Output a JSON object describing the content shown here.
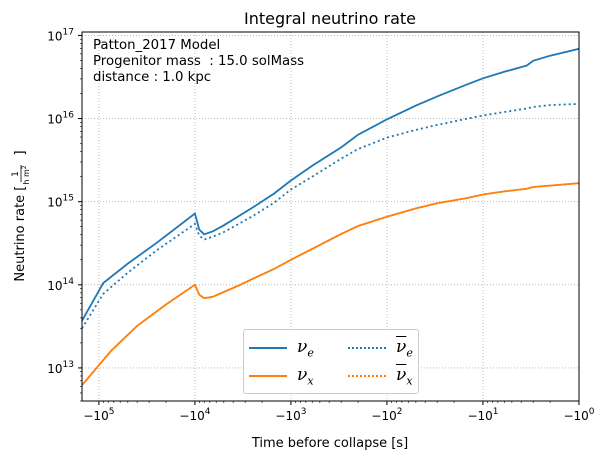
{
  "chart_data": {
    "type": "line",
    "title": "Integral neutrino rate",
    "xlabel": "Time before collapse [s]",
    "ylabel": "Neutrino rate [1/(h m²)]",
    "x_scale": "symlog-negative",
    "xlim": [
      -150000,
      -1
    ],
    "y_scale": "log",
    "ylim": [
      4000000000000.0,
      1.1e+17
    ],
    "x_ticks": [
      {
        "value": -100000,
        "base": "−10",
        "exp": "5"
      },
      {
        "value": -10000,
        "base": "−10",
        "exp": "4"
      },
      {
        "value": -1000,
        "base": "−10",
        "exp": "3"
      },
      {
        "value": -100,
        "base": "−10",
        "exp": "2"
      },
      {
        "value": -10,
        "base": "−10",
        "exp": "1"
      },
      {
        "value": -1,
        "base": "−10",
        "exp": "0"
      }
    ],
    "y_ticks": [
      {
        "value": 10000000000000.0,
        "base": "10",
        "exp": "13"
      },
      {
        "value": 100000000000000.0,
        "base": "10",
        "exp": "14"
      },
      {
        "value": 1000000000000000.0,
        "base": "10",
        "exp": "15"
      },
      {
        "value": 1e+16,
        "base": "10",
        "exp": "16"
      },
      {
        "value": 1e+17,
        "base": "10",
        "exp": "17"
      }
    ],
    "grid": true,
    "legend_position": "bottom-center",
    "annotation": [
      "Patton_2017 Model",
      "Progenitor mass  : 15.0 solMass",
      "distance : 1.0 kpc"
    ],
    "series": [
      {
        "name": "ν_e",
        "style": "solid",
        "color": "#1f77b4",
        "x": [
          -150000,
          -90000,
          -50000,
          -25000,
          -10000,
          -9000,
          -8000,
          -6500,
          -5000,
          -3500,
          -2500,
          -1500,
          -1000,
          -600,
          -300,
          -200,
          -100,
          -50,
          -30,
          -15,
          -10,
          -6,
          -3.5,
          -3,
          -2,
          -1
        ],
        "y": [
          37000000000000.0,
          105000000000000.0,
          180000000000000.0,
          320000000000000.0,
          720000000000000.0,
          460000000000000.0,
          405000000000000.0,
          440000000000000.0,
          520000000000000.0,
          670000000000000.0,
          850000000000000.0,
          1250000000000000.0,
          1800000000000000.0,
          2700000000000000.0,
          4500000000000000.0,
          6400000000000000.0,
          9800000000000000.0,
          1.43e+16,
          1.85e+16,
          2.55e+16,
          3.05e+16,
          3.65e+16,
          4.35e+16,
          4.95e+16,
          5.7e+16,
          6.9e+16
        ]
      },
      {
        "name": "ν_x",
        "style": "solid",
        "color": "#ff7f0e",
        "x": [
          -150000,
          -75000,
          -40000,
          -20000,
          -10000,
          -9000,
          -8000,
          -6500,
          -5000,
          -3500,
          -2500,
          -1500,
          -1000,
          -600,
          -300,
          -200,
          -100,
          -50,
          -30,
          -15,
          -10,
          -6,
          -3.5,
          -3,
          -2,
          -1
        ],
        "y": [
          6200000000000.0,
          16000000000000.0,
          32000000000000.0,
          58000000000000.0,
          100000000000000.0,
          76000000000000.0,
          69000000000000.0,
          72000000000000.0,
          82000000000000.0,
          98000000000000.0,
          118000000000000.0,
          155000000000000.0,
          200000000000000.0,
          270000000000000.0,
          410000000000000.0,
          510000000000000.0,
          660000000000000.0,
          830000000000000.0,
          960000000000000.0,
          1100000000000000.0,
          1220000000000000.0,
          1330000000000000.0,
          1430000000000000.0,
          1500000000000000.0,
          1560000000000000.0,
          1670000000000000.0
        ]
      },
      {
        "name": "ν̄_e",
        "style": "dotted",
        "color": "#1f77b4",
        "x": [
          -150000,
          -90000,
          -50000,
          -25000,
          -10000,
          -9000,
          -8000,
          -6500,
          -5000,
          -3500,
          -2500,
          -1500,
          -1000,
          -600,
          -300,
          -200,
          -100,
          -50,
          -30,
          -15,
          -10,
          -6,
          -3.5,
          -3,
          -2,
          -1
        ],
        "y": [
          30000000000000.0,
          78000000000000.0,
          140000000000000.0,
          260000000000000.0,
          540000000000000.0,
          390000000000000.0,
          350000000000000.0,
          380000000000000.0,
          430000000000000.0,
          540000000000000.0,
          670000000000000.0,
          970000000000000.0,
          1400000000000000.0,
          2000000000000000.0,
          3300000000000000.0,
          4300000000000000.0,
          5900000000000000.0,
          7300000000000000.0,
          8400000000000000.0,
          9900000000000000.0,
          1.09e+16,
          1.2e+16,
          1.32e+16,
          1.38e+16,
          1.45e+16,
          1.5e+16
        ]
      },
      {
        "name": "ν̄_x",
        "style": "dotted",
        "color": "#ff7f0e",
        "x": [
          -150000,
          -75000,
          -40000,
          -20000,
          -10000,
          -9000,
          -8000,
          -6500,
          -5000,
          -3500,
          -2500,
          -1500,
          -1000,
          -600,
          -300,
          -200,
          -100,
          -50,
          -30,
          -15,
          -10,
          -6,
          -3.5,
          -3,
          -2,
          -1
        ],
        "y": [
          6200000000000.0,
          16000000000000.0,
          32000000000000.0,
          58000000000000.0,
          100000000000000.0,
          76000000000000.0,
          69000000000000.0,
          72000000000000.0,
          82000000000000.0,
          98000000000000.0,
          118000000000000.0,
          155000000000000.0,
          200000000000000.0,
          270000000000000.0,
          410000000000000.0,
          510000000000000.0,
          660000000000000.0,
          830000000000000.0,
          960000000000000.0,
          1100000000000000.0,
          1220000000000000.0,
          1330000000000000.0,
          1430000000000000.0,
          1500000000000000.0,
          1560000000000000.0,
          1670000000000000.0
        ]
      }
    ]
  },
  "legend": {
    "items": [
      {
        "symbol": "ν",
        "sub": "e",
        "overline": false
      },
      {
        "symbol": "ν",
        "sub": "x",
        "overline": false
      },
      {
        "symbol": "ν",
        "sub": "e",
        "overline": true
      },
      {
        "symbol": "ν",
        "sub": "x",
        "overline": true
      }
    ]
  },
  "ylabel_parts": {
    "text": "Neutrino rate [",
    "num": "1",
    "den": "h m",
    "den_sup": "2",
    "close": "]"
  }
}
